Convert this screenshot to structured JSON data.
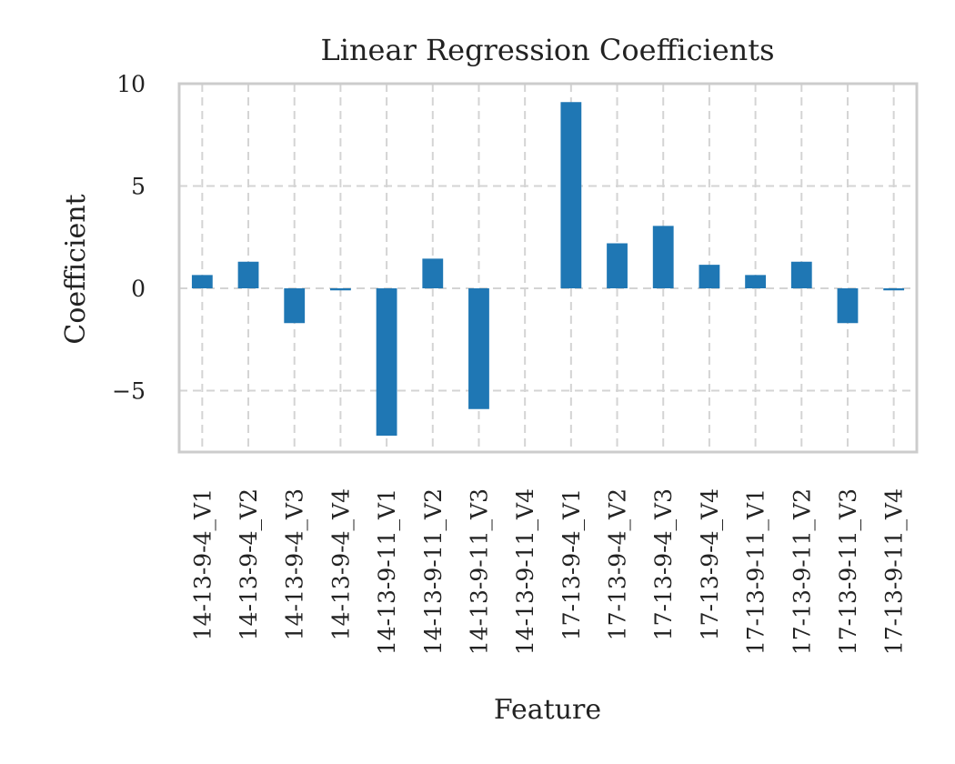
{
  "chart_data": {
    "type": "bar",
    "title": "Linear Regression Coefficients",
    "xlabel": "Feature",
    "ylabel": "Coefficient",
    "categories": [
      "14-13-9-4_V1",
      "14-13-9-4_V2",
      "14-13-9-4_V3",
      "14-13-9-4_V4",
      "14-13-9-11_V1",
      "14-13-9-11_V2",
      "14-13-9-11_V3",
      "14-13-9-11_V4",
      "17-13-9-4_V1",
      "17-13-9-4_V2",
      "17-13-9-4_V3",
      "17-13-9-4_V4",
      "17-13-9-11_V1",
      "17-13-9-11_V2",
      "17-13-9-11_V3",
      "17-13-9-11_V4"
    ],
    "values": [
      0.65,
      1.3,
      -1.7,
      -0.1,
      -7.2,
      1.45,
      -5.9,
      0.0,
      9.1,
      2.2,
      3.05,
      1.15,
      0.65,
      1.3,
      -1.7,
      -0.1
    ],
    "ylim": [
      -8.0,
      10.0
    ],
    "yticks": [
      {
        "value": 10,
        "label": "10"
      },
      {
        "value": 5,
        "label": "5"
      },
      {
        "value": 0,
        "label": "0"
      },
      {
        "value": -5,
        "label": "−5"
      }
    ],
    "grid": true,
    "bar_color": "#1f77b4"
  }
}
